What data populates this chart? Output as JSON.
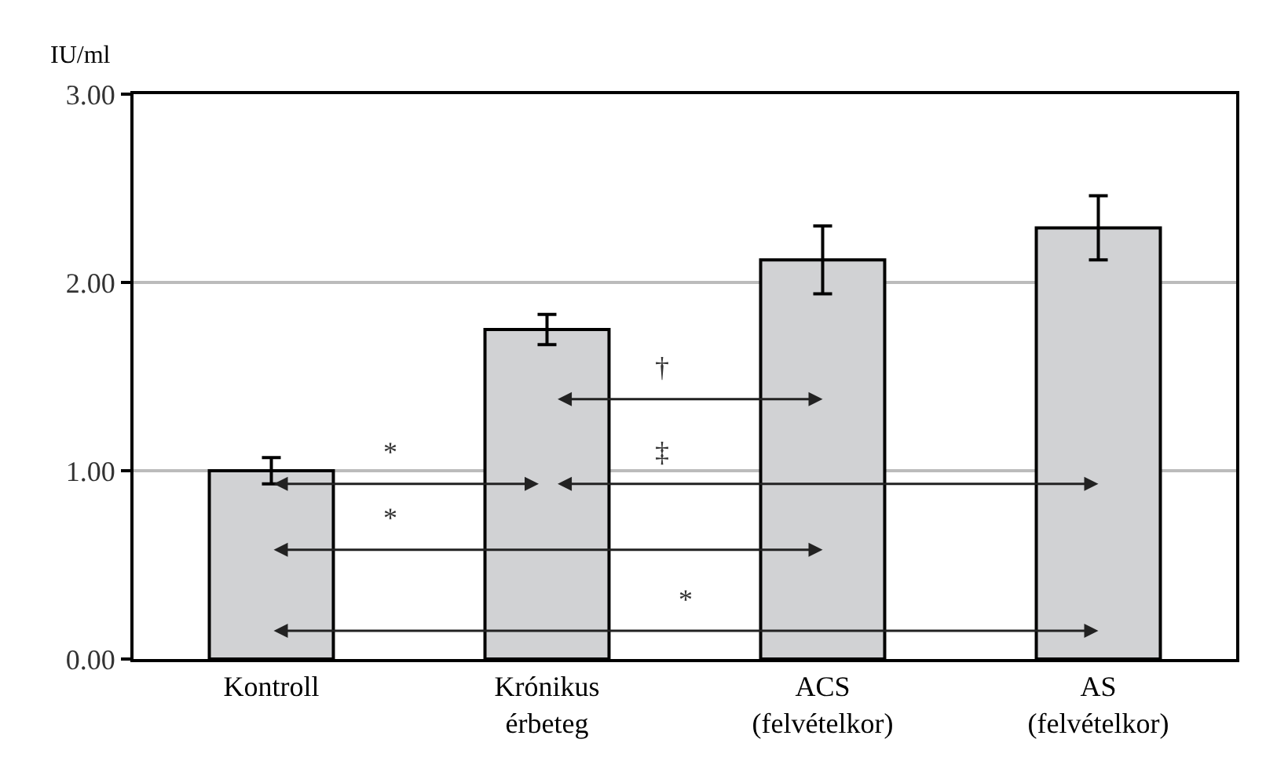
{
  "chart_data": {
    "type": "bar",
    "ylabel": "IU/ml",
    "categories": [
      "Kontroll",
      "Krónikus\nérbeteg",
      "ACS\n(felvételkor)",
      "AS\n(felvételkor)"
    ],
    "values": [
      1.0,
      1.75,
      2.12,
      2.29
    ],
    "errors": [
      0.07,
      0.08,
      0.18,
      0.17
    ],
    "color": "#d1d2d4",
    "ylim": [
      0,
      3
    ],
    "yticks": [
      {
        "value": 0,
        "label": "0.00"
      },
      {
        "value": 1,
        "label": "1.00"
      },
      {
        "value": 2,
        "label": "2.00"
      },
      {
        "value": 3,
        "label": "3.00"
      }
    ],
    "grid": "y",
    "annotations": [
      "*",
      "†",
      "‡",
      "*",
      "*"
    ]
  }
}
